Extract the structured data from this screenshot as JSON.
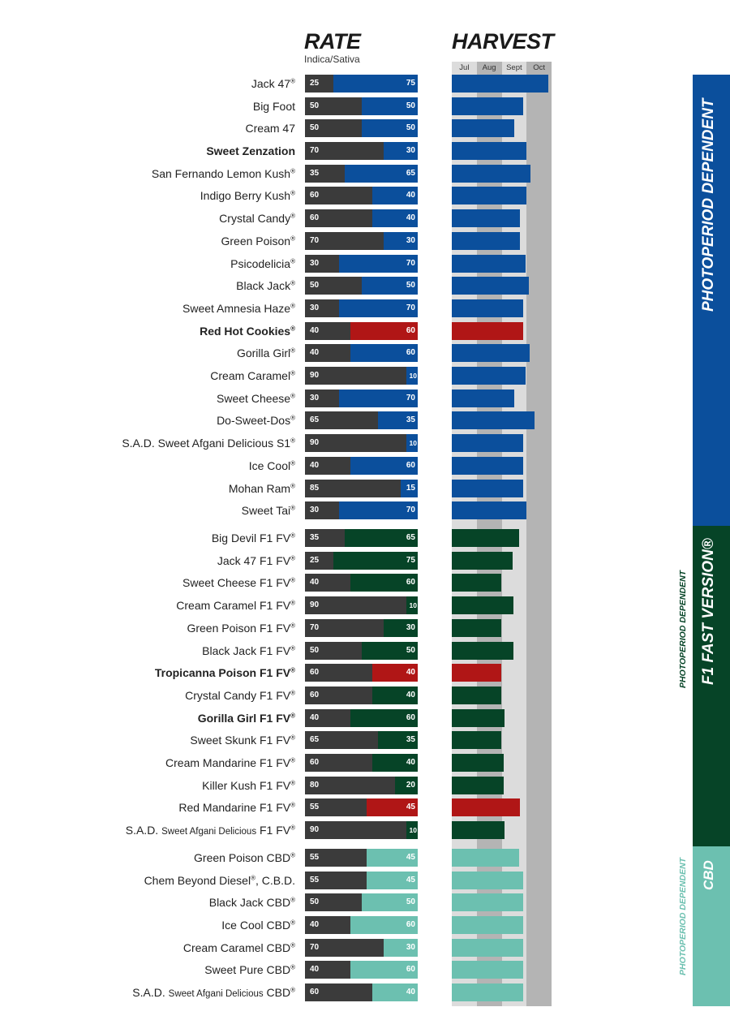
{
  "header": {
    "rate_title": "RATE",
    "rate_subtitle": "Indica/Sativa",
    "harvest_title": "HARVEST",
    "months": [
      "Jul",
      "Aug",
      "Sept",
      "Oct"
    ]
  },
  "colors": {
    "indica": "#3b3b3b",
    "photoperiod": "#0b4f9c",
    "f1_fast": "#064427",
    "cbd": "#6cc0b0",
    "highlight_red": "#b01616",
    "grid_light": "#dcdcdc",
    "grid_dark": "#b4b4b4"
  },
  "groups": [
    {
      "id": "photoperiod",
      "band_title": "PHOTOPERIOD DEPENDENT",
      "side_label": "",
      "color": "#0b4f9c"
    },
    {
      "id": "f1_fast",
      "band_title": "F1 FAST VERSION®",
      "side_label": "PHOTOPERIOD DEPENDENT",
      "color": "#064427"
    },
    {
      "id": "cbd",
      "band_title": "CBD",
      "side_label": "PHOTOPERIOD DEPENDENT",
      "color": "#6cc0b0"
    }
  ],
  "chart_data": {
    "type": "bar",
    "title": "RATE Indica/Sativa and HARVEST",
    "xlabel": "",
    "ylabel": "",
    "rate_range": [
      0,
      100
    ],
    "harvest_axis": {
      "months": [
        "Jul",
        "Aug",
        "Sept",
        "Oct"
      ],
      "range_months": [
        0,
        4
      ],
      "note": "harvest_end = months elapsed from start of July"
    },
    "strains": [
      {
        "name": "Jack 47",
        "reg": true,
        "bold": false,
        "group": "photoperiod",
        "indica": 25,
        "sativa": 75,
        "harvest_end": 3.87,
        "highlight": false
      },
      {
        "name": "Big Foot",
        "reg": false,
        "bold": false,
        "group": "photoperiod",
        "indica": 50,
        "sativa": 50,
        "harvest_end": 2.86,
        "highlight": false
      },
      {
        "name": "Cream 47",
        "reg": false,
        "bold": false,
        "group": "photoperiod",
        "indica": 50,
        "sativa": 50,
        "harvest_end": 2.5,
        "highlight": false
      },
      {
        "name": "Sweet Zenzation",
        "reg": false,
        "bold": true,
        "group": "photoperiod",
        "indica": 70,
        "sativa": 30,
        "harvest_end": 2.99,
        "highlight": false
      },
      {
        "name": "San Fernando Lemon Kush",
        "reg": true,
        "bold": false,
        "group": "photoperiod",
        "indica": 35,
        "sativa": 65,
        "harvest_end": 3.15,
        "highlight": false
      },
      {
        "name": "Indigo Berry Kush",
        "reg": true,
        "bold": false,
        "group": "photoperiod",
        "indica": 60,
        "sativa": 40,
        "harvest_end": 2.99,
        "highlight": false
      },
      {
        "name": "Crystal Candy",
        "reg": true,
        "bold": false,
        "group": "photoperiod",
        "indica": 60,
        "sativa": 40,
        "harvest_end": 2.73,
        "highlight": false
      },
      {
        "name": "Green Poison",
        "reg": true,
        "bold": false,
        "group": "photoperiod",
        "indica": 70,
        "sativa": 30,
        "harvest_end": 2.73,
        "highlight": false
      },
      {
        "name": "Psicodelicia",
        "reg": true,
        "bold": false,
        "group": "photoperiod",
        "indica": 30,
        "sativa": 70,
        "harvest_end": 2.96,
        "highlight": false
      },
      {
        "name": "Black Jack",
        "reg": true,
        "bold": false,
        "group": "photoperiod",
        "indica": 50,
        "sativa": 50,
        "harvest_end": 3.09,
        "highlight": false
      },
      {
        "name": "Sweet Amnesia Haze",
        "reg": true,
        "bold": false,
        "group": "photoperiod",
        "indica": 30,
        "sativa": 70,
        "harvest_end": 2.86,
        "highlight": false
      },
      {
        "name": "Red Hot Cookies",
        "reg": true,
        "bold": true,
        "group": "photoperiod",
        "indica": 40,
        "sativa": 60,
        "harvest_end": 2.86,
        "highlight": true
      },
      {
        "name": "Gorilla Girl",
        "reg": true,
        "bold": false,
        "group": "photoperiod",
        "indica": 40,
        "sativa": 60,
        "harvest_end": 3.12,
        "highlight": false
      },
      {
        "name": "Cream Caramel",
        "reg": true,
        "bold": false,
        "group": "photoperiod",
        "indica": 90,
        "sativa": 10,
        "harvest_end": 2.96,
        "highlight": false
      },
      {
        "name": "Sweet Cheese",
        "reg": true,
        "bold": false,
        "group": "photoperiod",
        "indica": 30,
        "sativa": 70,
        "harvest_end": 2.5,
        "highlight": false
      },
      {
        "name": "Do-Sweet-Dos",
        "reg": true,
        "bold": false,
        "group": "photoperiod",
        "indica": 65,
        "sativa": 35,
        "harvest_end": 3.32,
        "highlight": false
      },
      {
        "name": "S.A.D. Sweet Afgani Delicious S1",
        "reg": true,
        "bold": false,
        "group": "photoperiod",
        "indica": 90,
        "sativa": 10,
        "harvest_end": 2.86,
        "highlight": false
      },
      {
        "name": "Ice Cool",
        "reg": true,
        "bold": false,
        "group": "photoperiod",
        "indica": 40,
        "sativa": 60,
        "harvest_end": 2.86,
        "highlight": false
      },
      {
        "name": "Mohan Ram",
        "reg": true,
        "bold": false,
        "group": "photoperiod",
        "indica": 85,
        "sativa": 15,
        "harvest_end": 2.86,
        "highlight": false
      },
      {
        "name": "Sweet Tai",
        "reg": true,
        "bold": false,
        "group": "photoperiod",
        "indica": 30,
        "sativa": 70,
        "harvest_end": 2.99,
        "highlight": false
      },
      {
        "name": "Big Devil F1 FV",
        "reg": true,
        "bold": false,
        "group": "f1_fast",
        "indica": 35,
        "sativa": 65,
        "harvest_end": 2.7,
        "highlight": false
      },
      {
        "name": "Jack 47 F1 FV",
        "reg": true,
        "bold": false,
        "group": "f1_fast",
        "indica": 25,
        "sativa": 75,
        "harvest_end": 2.44,
        "highlight": false
      },
      {
        "name": "Sweet Cheese F1 FV",
        "reg": true,
        "bold": false,
        "group": "f1_fast",
        "indica": 40,
        "sativa": 60,
        "harvest_end": 1.98,
        "highlight": false
      },
      {
        "name": "Cream Caramel F1 FV",
        "reg": true,
        "bold": false,
        "group": "f1_fast",
        "indica": 90,
        "sativa": 10,
        "harvest_end": 2.47,
        "highlight": false
      },
      {
        "name": "Green Poison F1 FV",
        "reg": true,
        "bold": false,
        "group": "f1_fast",
        "indica": 70,
        "sativa": 30,
        "harvest_end": 1.98,
        "highlight": false
      },
      {
        "name": "Black Jack F1 FV",
        "reg": true,
        "bold": false,
        "group": "f1_fast",
        "indica": 50,
        "sativa": 50,
        "harvest_end": 2.47,
        "highlight": false
      },
      {
        "name": "Tropicanna Poison F1 FV",
        "reg": true,
        "bold": true,
        "group": "f1_fast",
        "indica": 60,
        "sativa": 40,
        "harvest_end": 1.98,
        "highlight": true
      },
      {
        "name": "Crystal Candy F1 FV",
        "reg": true,
        "bold": false,
        "group": "f1_fast",
        "indica": 60,
        "sativa": 40,
        "harvest_end": 1.98,
        "highlight": false
      },
      {
        "name": "Gorilla Girl F1 FV",
        "reg": true,
        "bold": true,
        "group": "f1_fast",
        "indica": 40,
        "sativa": 60,
        "harvest_end": 2.11,
        "highlight": false
      },
      {
        "name": "Sweet Skunk F1 FV",
        "reg": true,
        "bold": false,
        "group": "f1_fast",
        "indica": 65,
        "sativa": 35,
        "harvest_end": 1.98,
        "highlight": false
      },
      {
        "name": "Cream Mandarine F1 FV",
        "reg": true,
        "bold": false,
        "group": "f1_fast",
        "indica": 60,
        "sativa": 40,
        "harvest_end": 2.08,
        "highlight": false
      },
      {
        "name": "Killer Kush F1 FV",
        "reg": true,
        "bold": false,
        "group": "f1_fast",
        "indica": 80,
        "sativa": 20,
        "harvest_end": 2.08,
        "highlight": false
      },
      {
        "name": "Red Mandarine F1 FV",
        "reg": true,
        "bold": false,
        "group": "f1_fast",
        "indica": 55,
        "sativa": 45,
        "harvest_end": 2.73,
        "highlight": true
      },
      {
        "name": "S.A.D. |Sweet Afgani Delicious| F1 FV",
        "reg": true,
        "bold": false,
        "group": "f1_fast",
        "indica": 90,
        "sativa": 10,
        "harvest_end": 2.11,
        "highlight": false
      },
      {
        "name": "Green Poison CBD",
        "reg": true,
        "bold": false,
        "group": "cbd",
        "indica": 55,
        "sativa": 45,
        "harvest_end": 2.7,
        "highlight": false
      },
      {
        "name": "Chem Beyond Diesel®, C.B.D.",
        "reg": false,
        "bold": false,
        "group": "cbd",
        "indica": 55,
        "sativa": 45,
        "harvest_end": 2.86,
        "highlight": false
      },
      {
        "name": "Black Jack CBD",
        "reg": true,
        "bold": false,
        "group": "cbd",
        "indica": 50,
        "sativa": 50,
        "harvest_end": 2.86,
        "highlight": false
      },
      {
        "name": "Ice Cool CBD",
        "reg": true,
        "bold": false,
        "group": "cbd",
        "indica": 40,
        "sativa": 60,
        "harvest_end": 2.86,
        "highlight": false
      },
      {
        "name": "Cream Caramel CBD",
        "reg": true,
        "bold": false,
        "group": "cbd",
        "indica": 70,
        "sativa": 30,
        "harvest_end": 2.86,
        "highlight": false
      },
      {
        "name": "Sweet Pure CBD",
        "reg": true,
        "bold": false,
        "group": "cbd",
        "indica": 40,
        "sativa": 60,
        "harvest_end": 2.86,
        "highlight": false
      },
      {
        "name": "S.A.D. |Sweet Afgani Delicious| CBD",
        "reg": true,
        "bold": false,
        "group": "cbd",
        "indica": 60,
        "sativa": 40,
        "harvest_end": 2.86,
        "highlight": false
      }
    ]
  }
}
